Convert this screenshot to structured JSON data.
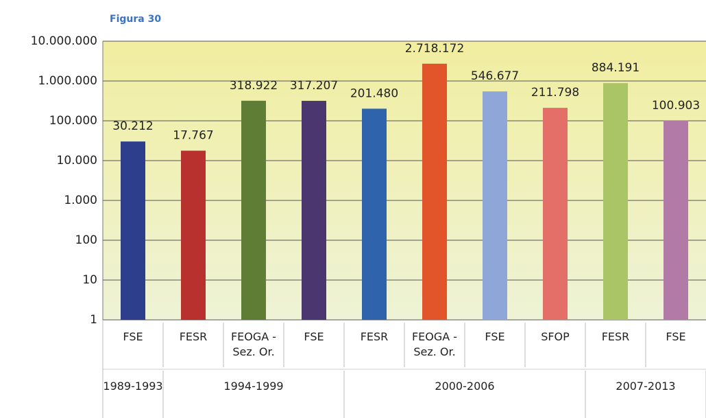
{
  "chart_data": {
    "type": "bar",
    "title": "Figura 30",
    "categories": [
      "FSE",
      "FESR",
      "FEOGA - Sez. Or.",
      "FSE",
      "FESR",
      "FEOGA - Sez. Or.",
      "FSE",
      "SFOP",
      "FESR",
      "FSE"
    ],
    "groups": [
      {
        "name": "1989-1993",
        "count": 1
      },
      {
        "name": "1994-1999",
        "count": 3
      },
      {
        "name": "2000-2006",
        "count": 4
      },
      {
        "name": "2007-2013",
        "count": 2
      }
    ],
    "values": [
      30212,
      17767,
      318922,
      317207,
      201480,
      2718172,
      546677,
      211798,
      884191,
      100903
    ],
    "value_labels": [
      "30.212",
      "17.767",
      "318.922",
      "317.207",
      "201.480",
      "2.718.172",
      "546.677",
      "211.798",
      "884.191",
      "100.903"
    ],
    "colors": [
      "#2c3e8c",
      "#b8312f",
      "#5f7d34",
      "#4b3670",
      "#2f64ad",
      "#e2542a",
      "#8fa6d8",
      "#e46f68",
      "#a9c566",
      "#b27aa7"
    ],
    "yscale": "log",
    "ylim": [
      1,
      10000000
    ],
    "yticks": [
      1,
      10,
      100,
      {
        "value": 1000,
        "label": "1.000"
      },
      {
        "value": 10000,
        "label": "10.000"
      },
      {
        "value": 100000,
        "label": "100.000"
      },
      {
        "value": 1000000,
        "label": "1.000.000"
      },
      {
        "value": 10000000,
        "label": "10.000.000"
      }
    ],
    "grid": true
  }
}
